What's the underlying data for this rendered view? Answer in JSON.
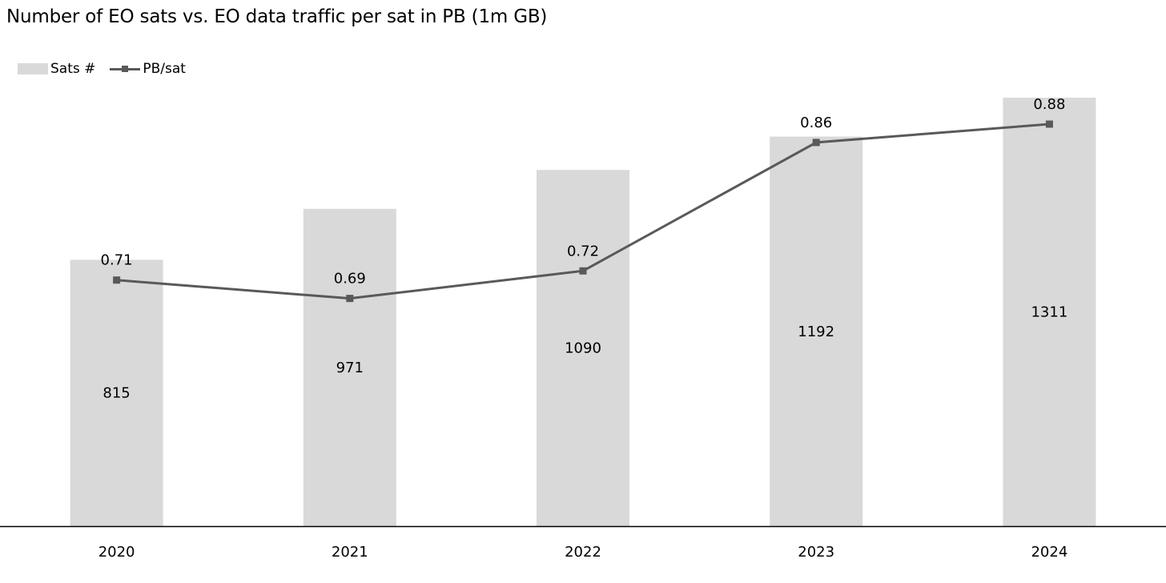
{
  "chart_data": {
    "type": "bar",
    "title": "Number of EO sats vs. EO data traffic per sat in PB (1m GB)",
    "categories": [
      "2020",
      "2021",
      "2022",
      "2023",
      "2024"
    ],
    "series": [
      {
        "name": "Sats #",
        "type": "bar",
        "values": [
          815,
          971,
          1090,
          1192,
          1311
        ],
        "data_labels": [
          "815",
          "971",
          "1090",
          "1192",
          "1311"
        ],
        "color": "#d9d9d9"
      },
      {
        "name": "PB/sat",
        "type": "line",
        "marker": "square",
        "values": [
          0.71,
          0.69,
          0.72,
          0.86,
          0.88
        ],
        "data_labels": [
          "0.71",
          "0.69",
          "0.72",
          "0.86",
          "0.88"
        ],
        "color": "#595959"
      }
    ],
    "y_bar_range": [
      0,
      1311
    ],
    "y_line_range": [
      0.55,
      0.88
    ],
    "xlabel": "",
    "ylabel": "",
    "grid": false,
    "legend_position": "top-left",
    "axis_color": "#000000"
  }
}
